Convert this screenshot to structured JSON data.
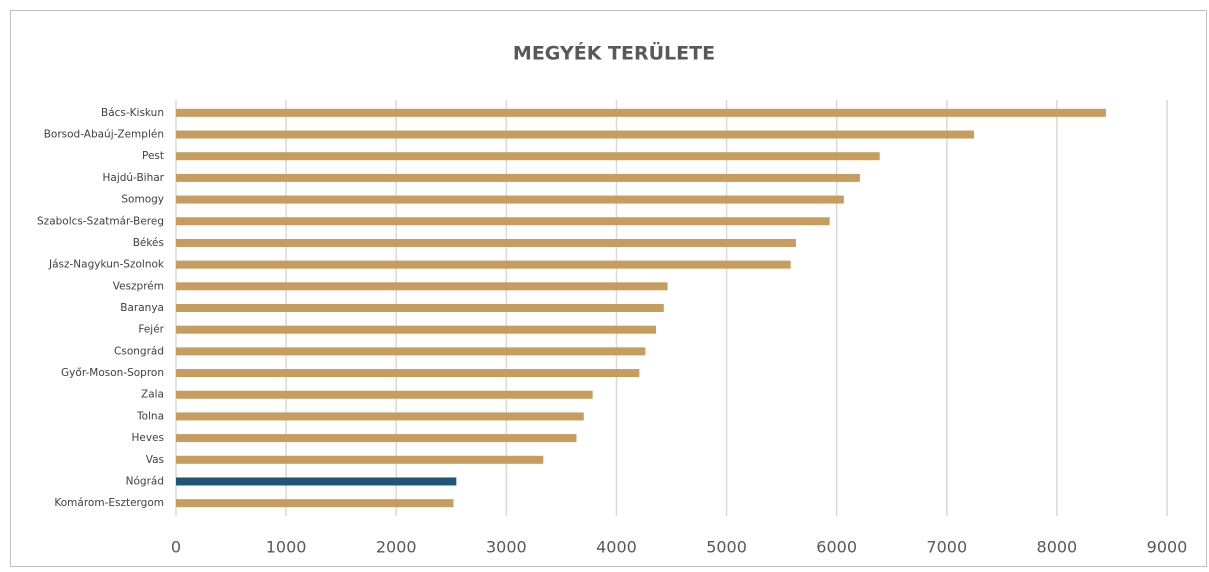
{
  "chart_data": {
    "type": "bar",
    "orientation": "horizontal",
    "title": "MEGYÉK TERÜLETE",
    "categories": [
      "Bács-Kiskun",
      "Borsod-Abaúj-Zemplén",
      "Pest",
      "Hajdú-Bihar",
      "Somogy",
      "Szabolcs-Szatmár-Bereg",
      "Békés",
      "Jász-Nagykun-Szolnok",
      "Veszprém",
      "Baranya",
      "Fejér",
      "Csongrád",
      "Győr-Moson-Sopron",
      "Zala",
      "Tolna",
      "Heves",
      "Vas",
      "Nógrád",
      "Komárom-Esztergom"
    ],
    "values": [
      8445,
      7247,
      6391,
      6211,
      6065,
      5936,
      5630,
      5582,
      4464,
      4430,
      4359,
      4263,
      4208,
      3784,
      3703,
      3637,
      3336,
      2546,
      2520
    ],
    "colors": [
      "#c69c5f",
      "#c69c5f",
      "#c69c5f",
      "#c69c5f",
      "#c69c5f",
      "#c69c5f",
      "#c69c5f",
      "#c69c5f",
      "#c69c5f",
      "#c69c5f",
      "#c69c5f",
      "#c69c5f",
      "#c69c5f",
      "#c69c5f",
      "#c69c5f",
      "#c69c5f",
      "#c69c5f",
      "#1f5678",
      "#c69c5f"
    ],
    "xlim": [
      0,
      9000
    ],
    "xticks": [
      0,
      1000,
      2000,
      3000,
      4000,
      5000,
      6000,
      7000,
      8000,
      9000
    ],
    "grid": true
  }
}
